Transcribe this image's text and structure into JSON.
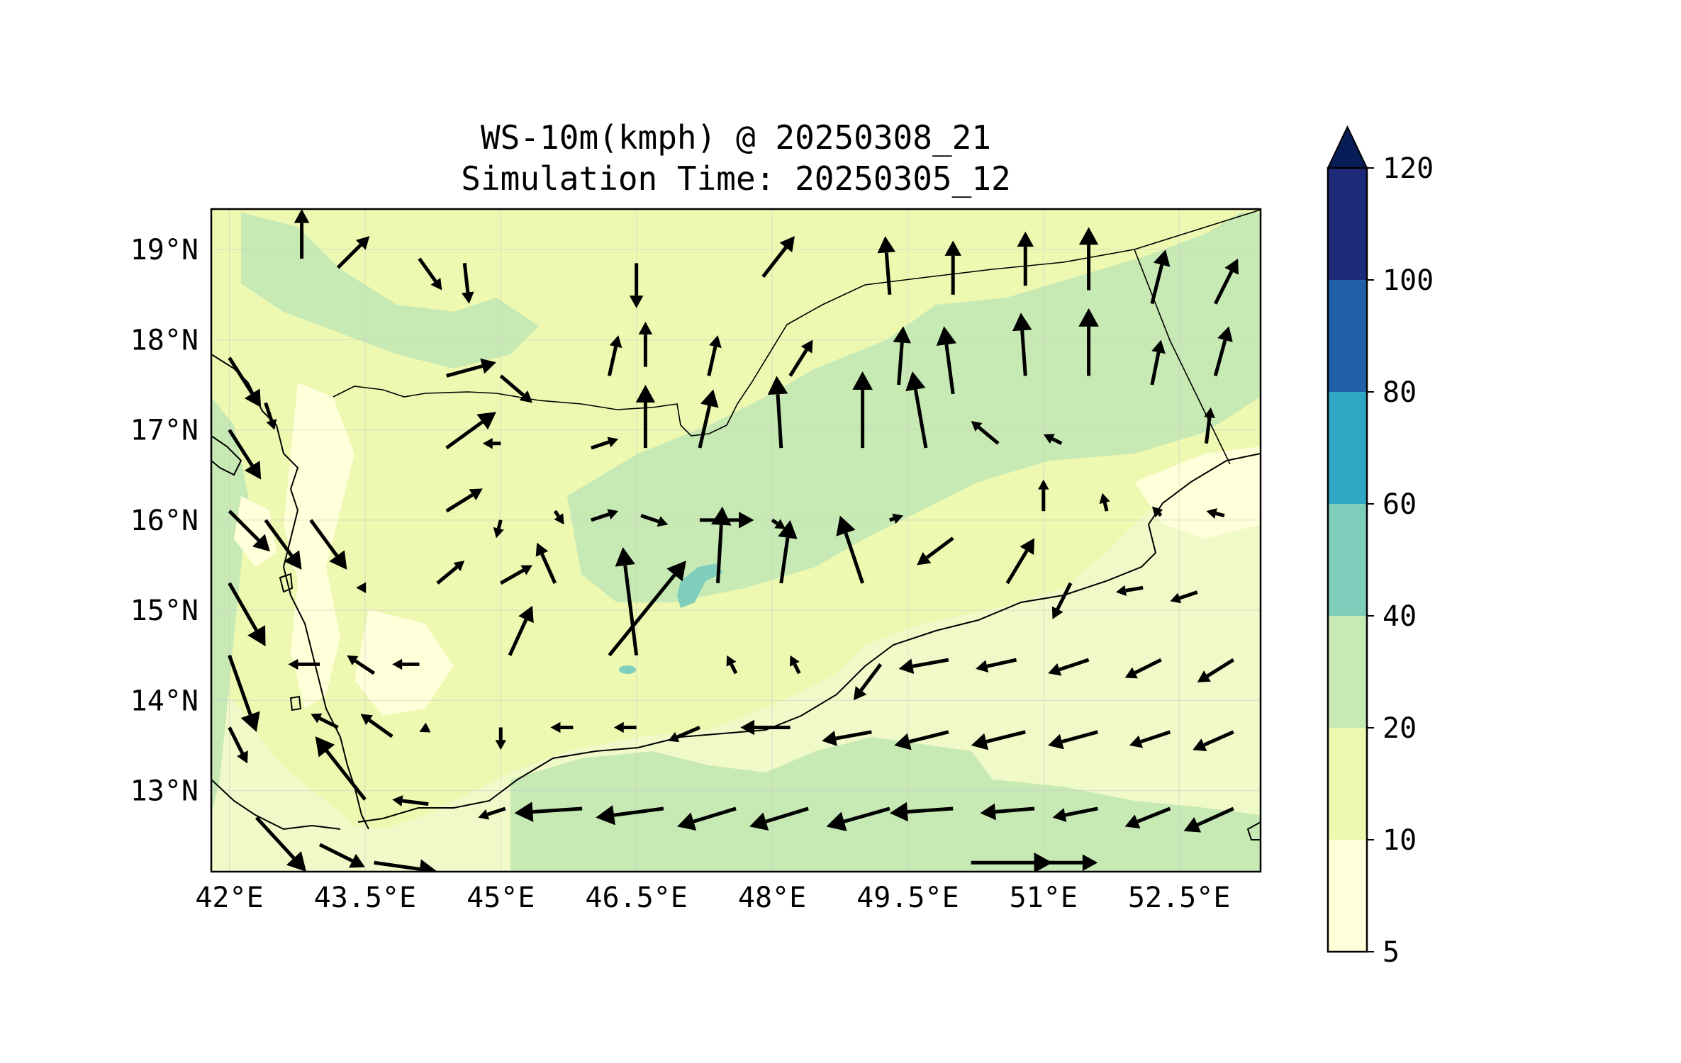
{
  "title": {
    "line1": "WS-10m(kmph) @ 20250308_21",
    "line2": "Simulation Time: 20250305_12"
  },
  "map": {
    "lon_range": [
      41.8,
      53.4
    ],
    "lat_range": [
      12.1,
      19.45
    ],
    "lon_ticks": [
      {
        "value": 42.0,
        "label": "42°E"
      },
      {
        "value": 43.5,
        "label": "43.5°E"
      },
      {
        "value": 45.0,
        "label": "45°E"
      },
      {
        "value": 46.5,
        "label": "46.5°E"
      },
      {
        "value": 48.0,
        "label": "48°E"
      },
      {
        "value": 49.5,
        "label": "49.5°E"
      },
      {
        "value": 51.0,
        "label": "51°E"
      },
      {
        "value": 52.5,
        "label": "52.5°E"
      }
    ],
    "lat_ticks": [
      {
        "value": 19,
        "label": "19°N"
      },
      {
        "value": 18,
        "label": "18°N"
      },
      {
        "value": 17,
        "label": "17°N"
      },
      {
        "value": 16,
        "label": "16°N"
      },
      {
        "value": 15,
        "label": "15°N"
      },
      {
        "value": 14,
        "label": "14°N"
      },
      {
        "value": 13,
        "label": "13°N"
      }
    ],
    "background_color": "#f0f9c8",
    "grid": true
  },
  "colorbar": {
    "levels": [
      {
        "value": 5,
        "label": "5",
        "color": "#ffffd9"
      },
      {
        "value": 10,
        "label": "10",
        "color": "#edf8b1"
      },
      {
        "value": 20,
        "label": "20",
        "color": "#c7e9b4"
      },
      {
        "value": 40,
        "label": "40",
        "color": "#7fcdbb"
      },
      {
        "value": 60,
        "label": "60",
        "color": "#2ea7c4"
      },
      {
        "value": 80,
        "label": "80",
        "color": "#2160a8"
      },
      {
        "value": 100,
        "label": "100",
        "color": "#1d2a7a"
      },
      {
        "value": 120,
        "label": "120",
        "color": "#0b1d4a"
      }
    ],
    "extend": "max",
    "extend_color": "#081d58"
  },
  "wind_vectors": [
    {
      "lon": 42.8,
      "lat": 18.9,
      "dx": 0.0,
      "dy": 0.55
    },
    {
      "lon": 43.2,
      "lat": 18.8,
      "dx": 0.35,
      "dy": 0.35
    },
    {
      "lon": 44.1,
      "lat": 18.9,
      "dx": 0.25,
      "dy": -0.35
    },
    {
      "lon": 44.6,
      "lat": 18.85,
      "dx": 0.05,
      "dy": -0.45
    },
    {
      "lon": 46.5,
      "lat": 18.85,
      "dx": 0.0,
      "dy": -0.5
    },
    {
      "lon": 47.9,
      "lat": 18.7,
      "dx": 0.35,
      "dy": 0.45
    },
    {
      "lon": 49.3,
      "lat": 18.5,
      "dx": -0.05,
      "dy": 0.65
    },
    {
      "lon": 50.0,
      "lat": 18.5,
      "dx": 0.0,
      "dy": 0.6
    },
    {
      "lon": 50.8,
      "lat": 18.6,
      "dx": 0.0,
      "dy": 0.6
    },
    {
      "lon": 51.5,
      "lat": 18.55,
      "dx": 0.0,
      "dy": 0.7
    },
    {
      "lon": 52.2,
      "lat": 18.4,
      "dx": 0.15,
      "dy": 0.6
    },
    {
      "lon": 52.9,
      "lat": 18.4,
      "dx": 0.25,
      "dy": 0.5
    },
    {
      "lon": 44.4,
      "lat": 17.6,
      "dx": 0.55,
      "dy": 0.15
    },
    {
      "lon": 45.0,
      "lat": 17.6,
      "dx": 0.35,
      "dy": -0.3
    },
    {
      "lon": 46.2,
      "lat": 17.6,
      "dx": 0.1,
      "dy": 0.45
    },
    {
      "lon": 46.6,
      "lat": 17.7,
      "dx": 0.0,
      "dy": 0.5
    },
    {
      "lon": 47.3,
      "lat": 17.6,
      "dx": 0.1,
      "dy": 0.45
    },
    {
      "lon": 48.2,
      "lat": 17.6,
      "dx": 0.25,
      "dy": 0.4
    },
    {
      "lon": 49.4,
      "lat": 17.5,
      "dx": 0.05,
      "dy": 0.65
    },
    {
      "lon": 50.0,
      "lat": 17.4,
      "dx": -0.1,
      "dy": 0.75
    },
    {
      "lon": 50.8,
      "lat": 17.6,
      "dx": -0.05,
      "dy": 0.7
    },
    {
      "lon": 51.5,
      "lat": 17.6,
      "dx": 0.0,
      "dy": 0.75
    },
    {
      "lon": 52.2,
      "lat": 17.5,
      "dx": 0.1,
      "dy": 0.5
    },
    {
      "lon": 52.9,
      "lat": 17.6,
      "dx": 0.15,
      "dy": 0.55
    },
    {
      "lon": 44.4,
      "lat": 16.8,
      "dx": 0.55,
      "dy": 0.4
    },
    {
      "lon": 45.0,
      "lat": 16.85,
      "dx": -0.2,
      "dy": 0.0
    },
    {
      "lon": 46.0,
      "lat": 16.8,
      "dx": 0.3,
      "dy": 0.1
    },
    {
      "lon": 46.6,
      "lat": 16.8,
      "dx": 0.0,
      "dy": 0.7
    },
    {
      "lon": 47.2,
      "lat": 16.8,
      "dx": 0.15,
      "dy": 0.65
    },
    {
      "lon": 48.1,
      "lat": 16.8,
      "dx": -0.05,
      "dy": 0.8
    },
    {
      "lon": 49.0,
      "lat": 16.8,
      "dx": 0.0,
      "dy": 0.85
    },
    {
      "lon": 49.7,
      "lat": 16.8,
      "dx": -0.15,
      "dy": 0.85
    },
    {
      "lon": 50.5,
      "lat": 16.85,
      "dx": -0.3,
      "dy": 0.25
    },
    {
      "lon": 51.2,
      "lat": 16.85,
      "dx": -0.2,
      "dy": 0.1
    },
    {
      "lon": 52.8,
      "lat": 16.85,
      "dx": 0.05,
      "dy": 0.4
    },
    {
      "lon": 44.4,
      "lat": 16.1,
      "dx": 0.4,
      "dy": 0.25
    },
    {
      "lon": 45.0,
      "lat": 16.0,
      "dx": -0.05,
      "dy": -0.2
    },
    {
      "lon": 45.6,
      "lat": 16.1,
      "dx": 0.1,
      "dy": -0.15
    },
    {
      "lon": 46.0,
      "lat": 16.0,
      "dx": 0.3,
      "dy": 0.1
    },
    {
      "lon": 46.55,
      "lat": 16.05,
      "dx": 0.3,
      "dy": -0.1
    },
    {
      "lon": 47.2,
      "lat": 16.0,
      "dx": 0.6,
      "dy": 0.0
    },
    {
      "lon": 47.4,
      "lat": 15.3,
      "dx": 0.05,
      "dy": 0.85
    },
    {
      "lon": 48.0,
      "lat": 16.0,
      "dx": 0.15,
      "dy": -0.1
    },
    {
      "lon": 48.1,
      "lat": 15.3,
      "dx": 0.1,
      "dy": 0.7
    },
    {
      "lon": 49.0,
      "lat": 15.3,
      "dx": -0.25,
      "dy": 0.75
    },
    {
      "lon": 49.3,
      "lat": 16.0,
      "dx": 0.15,
      "dy": 0.05
    },
    {
      "lon": 50.0,
      "lat": 15.8,
      "dx": -0.4,
      "dy": -0.3
    },
    {
      "lon": 50.6,
      "lat": 15.3,
      "dx": 0.3,
      "dy": 0.5
    },
    {
      "lon": 51.0,
      "lat": 16.1,
      "dx": 0.0,
      "dy": 0.35
    },
    {
      "lon": 51.7,
      "lat": 16.1,
      "dx": -0.05,
      "dy": 0.2
    },
    {
      "lon": 52.3,
      "lat": 16.05,
      "dx": -0.1,
      "dy": 0.1
    },
    {
      "lon": 53.0,
      "lat": 16.05,
      "dx": -0.2,
      "dy": 0.05
    },
    {
      "lon": 44.3,
      "lat": 15.3,
      "dx": 0.3,
      "dy": 0.25
    },
    {
      "lon": 45.0,
      "lat": 15.3,
      "dx": 0.35,
      "dy": 0.2
    },
    {
      "lon": 45.6,
      "lat": 15.3,
      "dx": -0.2,
      "dy": 0.45
    },
    {
      "lon": 46.2,
      "lat": 14.5,
      "dx": 0.85,
      "dy": 1.05
    },
    {
      "lon": 46.5,
      "lat": 14.5,
      "dx": -0.15,
      "dy": 1.2
    },
    {
      "lon": 45.1,
      "lat": 14.5,
      "dx": 0.25,
      "dy": 0.55
    },
    {
      "lon": 43.5,
      "lat": 15.25,
      "dx": -0.1,
      "dy": 0.0
    },
    {
      "lon": 52.1,
      "lat": 15.25,
      "dx": -0.3,
      "dy": -0.05
    },
    {
      "lon": 52.7,
      "lat": 15.2,
      "dx": -0.3,
      "dy": -0.1
    },
    {
      "lon": 51.3,
      "lat": 15.3,
      "dx": -0.2,
      "dy": -0.4
    },
    {
      "lon": 43.0,
      "lat": 14.4,
      "dx": -0.35,
      "dy": 0.0
    },
    {
      "lon": 43.6,
      "lat": 14.3,
      "dx": -0.3,
      "dy": 0.2
    },
    {
      "lon": 44.1,
      "lat": 14.4,
      "dx": -0.3,
      "dy": 0.0
    },
    {
      "lon": 47.6,
      "lat": 14.3,
      "dx": -0.1,
      "dy": 0.2
    },
    {
      "lon": 48.3,
      "lat": 14.3,
      "dx": -0.1,
      "dy": 0.2
    },
    {
      "lon": 49.2,
      "lat": 14.4,
      "dx": -0.3,
      "dy": -0.4
    },
    {
      "lon": 49.95,
      "lat": 14.45,
      "dx": -0.55,
      "dy": -0.1
    },
    {
      "lon": 50.7,
      "lat": 14.45,
      "dx": -0.45,
      "dy": -0.1
    },
    {
      "lon": 51.5,
      "lat": 14.45,
      "dx": -0.45,
      "dy": -0.15
    },
    {
      "lon": 52.3,
      "lat": 14.45,
      "dx": -0.4,
      "dy": -0.2
    },
    {
      "lon": 53.1,
      "lat": 14.45,
      "dx": -0.4,
      "dy": -0.25
    },
    {
      "lon": 43.2,
      "lat": 13.7,
      "dx": -0.3,
      "dy": 0.15
    },
    {
      "lon": 43.8,
      "lat": 13.6,
      "dx": -0.35,
      "dy": 0.25
    },
    {
      "lon": 44.2,
      "lat": 13.7,
      "dx": -0.1,
      "dy": -0.05
    },
    {
      "lon": 45.0,
      "lat": 13.7,
      "dx": 0.0,
      "dy": -0.25
    },
    {
      "lon": 45.8,
      "lat": 13.7,
      "dx": -0.25,
      "dy": 0.0
    },
    {
      "lon": 46.5,
      "lat": 13.7,
      "dx": -0.25,
      "dy": 0.0
    },
    {
      "lon": 47.2,
      "lat": 13.7,
      "dx": -0.35,
      "dy": -0.15
    },
    {
      "lon": 48.2,
      "lat": 13.7,
      "dx": -0.55,
      "dy": 0.0
    },
    {
      "lon": 49.1,
      "lat": 13.65,
      "dx": -0.55,
      "dy": -0.1
    },
    {
      "lon": 49.95,
      "lat": 13.65,
      "dx": -0.6,
      "dy": -0.15
    },
    {
      "lon": 50.8,
      "lat": 13.65,
      "dx": -0.6,
      "dy": -0.15
    },
    {
      "lon": 51.6,
      "lat": 13.65,
      "dx": -0.55,
      "dy": -0.15
    },
    {
      "lon": 52.4,
      "lat": 13.65,
      "dx": -0.45,
      "dy": -0.15
    },
    {
      "lon": 53.1,
      "lat": 13.65,
      "dx": -0.45,
      "dy": -0.2
    },
    {
      "lon": 43.5,
      "lat": 12.9,
      "dx": -0.55,
      "dy": 0.7
    },
    {
      "lon": 44.2,
      "lat": 12.85,
      "dx": -0.4,
      "dy": 0.05
    },
    {
      "lon": 45.05,
      "lat": 12.8,
      "dx": -0.3,
      "dy": -0.1
    },
    {
      "lon": 45.9,
      "lat": 12.8,
      "dx": -0.75,
      "dy": -0.05
    },
    {
      "lon": 46.8,
      "lat": 12.8,
      "dx": -0.75,
      "dy": -0.1
    },
    {
      "lon": 47.6,
      "lat": 12.8,
      "dx": -0.65,
      "dy": -0.2
    },
    {
      "lon": 48.4,
      "lat": 12.8,
      "dx": -0.65,
      "dy": -0.2
    },
    {
      "lon": 49.3,
      "lat": 12.8,
      "dx": -0.7,
      "dy": -0.2
    },
    {
      "lon": 50.0,
      "lat": 12.8,
      "dx": -0.7,
      "dy": -0.05
    },
    {
      "lon": 50.9,
      "lat": 12.8,
      "dx": -0.6,
      "dy": -0.05
    },
    {
      "lon": 51.6,
      "lat": 12.8,
      "dx": -0.5,
      "dy": -0.1
    },
    {
      "lon": 52.4,
      "lat": 12.8,
      "dx": -0.5,
      "dy": -0.2
    },
    {
      "lon": 53.1,
      "lat": 12.8,
      "dx": -0.55,
      "dy": -0.25
    },
    {
      "lon": 42.0,
      "lat": 17.8,
      "dx": 0.35,
      "dy": -0.55
    },
    {
      "lon": 42.0,
      "lat": 17.0,
      "dx": 0.35,
      "dy": -0.55
    },
    {
      "lon": 42.0,
      "lat": 16.1,
      "dx": 0.45,
      "dy": -0.45
    },
    {
      "lon": 42.0,
      "lat": 15.3,
      "dx": 0.4,
      "dy": -0.7
    },
    {
      "lon": 42.0,
      "lat": 14.5,
      "dx": 0.3,
      "dy": -0.85
    },
    {
      "lon": 42.0,
      "lat": 13.7,
      "dx": 0.2,
      "dy": -0.4
    },
    {
      "lon": 42.4,
      "lat": 16.0,
      "dx": 0.4,
      "dy": -0.55
    },
    {
      "lon": 42.4,
      "lat": 17.3,
      "dx": 0.1,
      "dy": -0.3
    },
    {
      "lon": 42.9,
      "lat": 16.0,
      "dx": 0.4,
      "dy": -0.55
    },
    {
      "lon": 42.3,
      "lat": 12.7,
      "dx": 0.55,
      "dy": -0.6
    },
    {
      "lon": 43.0,
      "lat": 12.4,
      "dx": 0.5,
      "dy": -0.25
    },
    {
      "lon": 43.6,
      "lat": 12.2,
      "dx": 0.7,
      "dy": -0.1
    },
    {
      "lon": 50.2,
      "lat": 12.2,
      "dx": 0.9,
      "dy": 0.0
    },
    {
      "lon": 51.0,
      "lat": 12.2,
      "dx": 0.6,
      "dy": 0.0
    }
  ]
}
